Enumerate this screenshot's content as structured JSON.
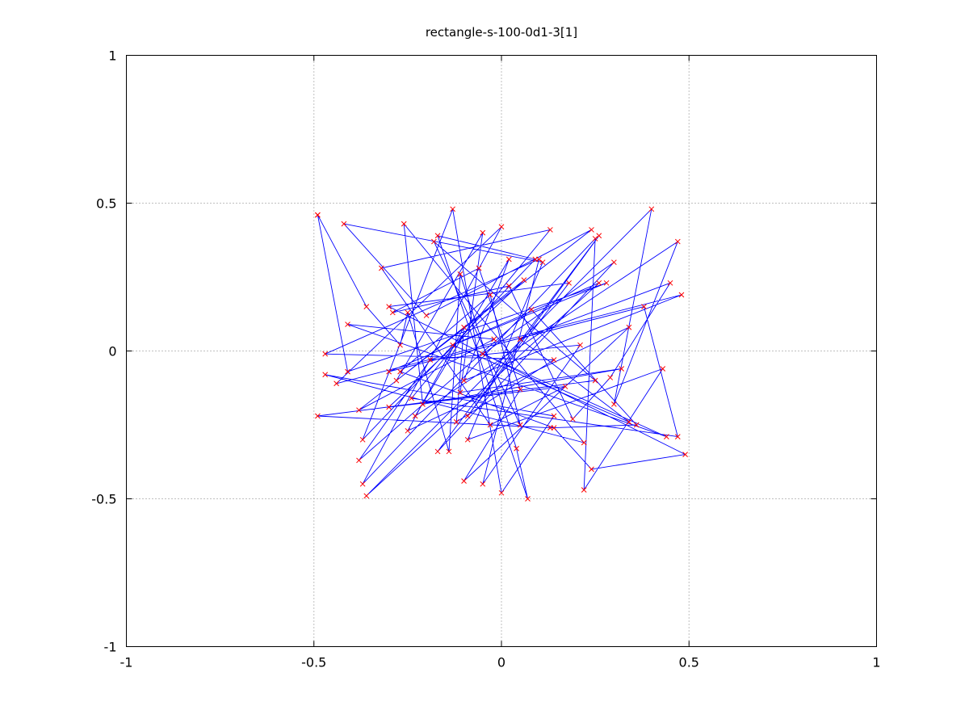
{
  "chart_data": {
    "type": "line",
    "title": "rectangle-s-100-0d1-3[1]",
    "xlabel": "",
    "ylabel": "",
    "xlim": [
      -1,
      1
    ],
    "ylim": [
      -1,
      1
    ],
    "xticks": [
      -1,
      -0.5,
      0,
      0.5,
      1
    ],
    "yticks": [
      -1,
      -0.5,
      0,
      0.5,
      1
    ],
    "xtick_labels": [
      "-1",
      "-0.5",
      "0",
      "0.5",
      "1"
    ],
    "ytick_labels": [
      "-1",
      "-0.5",
      "0",
      "0.5",
      "1"
    ],
    "grid": true,
    "line_color": "#0000ff",
    "marker_color": "#ff0000",
    "marker": "x",
    "series": [
      {
        "points": [
          [
            -0.49,
            0.46
          ],
          [
            -0.36,
            0.15
          ],
          [
            -0.27,
            0.02
          ],
          [
            -0.25,
            0.13
          ],
          [
            -0.14,
            -0.34
          ],
          [
            -0.11,
            0.26
          ],
          [
            0.04,
            -0.33
          ],
          [
            0.07,
            -0.5
          ],
          [
            -0.17,
            0.39
          ],
          [
            0.09,
            0.31
          ],
          [
            -0.37,
            -0.3
          ],
          [
            -0.13,
            0.48
          ],
          [
            0.0,
            -0.48
          ],
          [
            0.14,
            -0.22
          ],
          [
            -0.47,
            -0.08
          ],
          [
            0.22,
            -0.31
          ],
          [
            -0.26,
            0.43
          ],
          [
            -0.21,
            -0.18
          ],
          [
            0.32,
            -0.06
          ],
          [
            -0.11,
            -0.14
          ],
          [
            -0.05,
            0.4
          ],
          [
            -0.28,
            -0.1
          ],
          [
            0.24,
            0.41
          ],
          [
            -0.2,
            0.12
          ],
          [
            -0.42,
            0.43
          ],
          [
            0.11,
            0.3
          ],
          [
            -0.09,
            -0.3
          ],
          [
            0.43,
            -0.06
          ],
          [
            0.22,
            -0.47
          ],
          [
            0.25,
            0.38
          ],
          [
            -0.37,
            -0.45
          ],
          [
            0.0,
            0.42
          ],
          [
            -0.44,
            -0.11
          ],
          [
            0.48,
            0.19
          ],
          [
            -0.1,
            -0.1
          ],
          [
            0.02,
            0.31
          ],
          [
            -0.23,
            -0.22
          ],
          [
            0.47,
            0.37
          ],
          [
            0.3,
            -0.18
          ],
          [
            0.4,
            0.48
          ],
          [
            -0.36,
            -0.49
          ],
          [
            0.26,
            0.23
          ],
          [
            -0.3,
            -0.07
          ],
          [
            0.38,
            0.15
          ],
          [
            0.47,
            -0.29
          ],
          [
            -0.24,
            -0.16
          ],
          [
            0.13,
            0.41
          ],
          [
            -0.32,
            0.28
          ],
          [
            -0.03,
            -0.25
          ],
          [
            0.17,
            -0.12
          ],
          [
            -0.3,
            -0.19
          ],
          [
            0.06,
            0.24
          ],
          [
            -0.38,
            -0.2
          ],
          [
            -0.02,
            0.04
          ],
          [
            -0.41,
            0.09
          ],
          [
            0.44,
            -0.29
          ],
          [
            -0.05,
            -0.01
          ],
          [
            0.3,
            0.3
          ],
          [
            -0.17,
            -0.34
          ],
          [
            0.26,
            0.39
          ],
          [
            -0.09,
            -0.22
          ],
          [
            0.18,
            0.23
          ],
          [
            -0.3,
            0.15
          ],
          [
            0.49,
            -0.35
          ],
          [
            0.24,
            -0.4
          ],
          [
            0.14,
            -0.26
          ],
          [
            -0.27,
            -0.07
          ],
          [
            -0.03,
            0.19
          ],
          [
            0.05,
            -0.25
          ],
          [
            -0.18,
            0.37
          ],
          [
            0.25,
            -0.1
          ],
          [
            -0.49,
            -0.22
          ],
          [
            0.13,
            -0.26
          ],
          [
            0.36,
            -0.25
          ],
          [
            0.08,
            0.14
          ],
          [
            -0.38,
            -0.37
          ],
          [
            -0.19,
            -0.03
          ],
          [
            0.21,
            0.02
          ],
          [
            -0.05,
            -0.45
          ],
          [
            0.1,
            0.31
          ],
          [
            -0.47,
            -0.01
          ],
          [
            0.14,
            -0.03
          ],
          [
            -0.12,
            -0.24
          ],
          [
            -0.1,
            0.08
          ],
          [
            -0.25,
            -0.27
          ],
          [
            0.34,
            0.08
          ],
          [
            -0.1,
            -0.44
          ],
          [
            0.05,
            -0.13
          ],
          [
            -0.06,
            0.28
          ],
          [
            -0.29,
            0.13
          ],
          [
            0.02,
            0.22
          ],
          [
            0.19,
            -0.23
          ],
          [
            0.29,
            -0.09
          ],
          [
            0.45,
            0.23
          ],
          [
            0.05,
            0.04
          ],
          [
            0.34,
            -0.24
          ],
          [
            -0.13,
            0.02
          ],
          [
            0.28,
            0.23
          ],
          [
            -0.41,
            -0.07
          ],
          [
            -0.49,
            0.46
          ]
        ]
      }
    ]
  }
}
